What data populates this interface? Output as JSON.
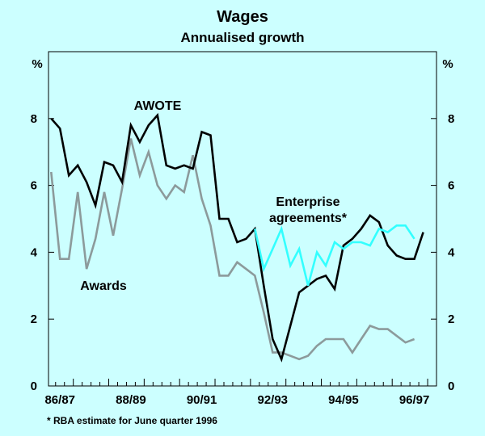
{
  "chart_data": {
    "type": "line",
    "title": "Wages",
    "subtitle": "Annualised growth",
    "y_unit_left": "%",
    "y_unit_right": "%",
    "ylim": [
      0,
      10
    ],
    "yticks": [
      0,
      2,
      4,
      6,
      8
    ],
    "x_tick_labels": [
      "86/87",
      "88/89",
      "90/91",
      "92/93",
      "94/95",
      "96/97"
    ],
    "x_tick_positions": [
      1,
      9,
      17,
      25,
      33,
      41
    ],
    "xlim": [
      -0.3,
      43.5
    ],
    "footnote": "* RBA estimate for June quarter 1996",
    "series": [
      {
        "name": "AWOTE",
        "color": "#000000",
        "x": [
          0,
          1,
          2,
          3,
          4,
          5,
          6,
          7,
          8,
          9,
          10,
          11,
          12,
          13,
          14,
          15,
          16,
          17,
          18,
          19,
          20,
          21,
          22,
          23,
          24,
          25,
          26,
          27,
          28,
          29,
          30,
          31,
          32,
          33,
          34,
          35,
          36,
          37,
          38,
          39,
          40,
          41,
          42
        ],
        "values": [
          8.0,
          7.7,
          6.3,
          6.6,
          6.1,
          5.4,
          6.7,
          6.6,
          6.1,
          7.8,
          7.3,
          7.8,
          8.1,
          6.6,
          6.5,
          6.6,
          6.5,
          7.6,
          7.5,
          5.0,
          5.0,
          4.3,
          4.4,
          4.7,
          3.0,
          1.4,
          0.8,
          1.8,
          2.8,
          3.0,
          3.2,
          3.3,
          2.9,
          4.2,
          4.4,
          4.7,
          5.1,
          4.9,
          4.2,
          3.9,
          3.8,
          3.8,
          4.6
        ]
      },
      {
        "name": "Awards",
        "color": "#8c9a9b",
        "x": [
          0,
          1,
          2,
          3,
          4,
          5,
          6,
          7,
          8,
          9,
          10,
          11,
          12,
          13,
          14,
          15,
          16,
          17,
          18,
          19,
          20,
          21,
          22,
          23,
          24,
          25,
          26,
          27,
          28,
          29,
          30,
          31,
          32,
          33,
          34,
          35,
          36,
          37,
          38,
          39,
          40,
          41
        ],
        "values": [
          6.4,
          3.8,
          3.8,
          5.8,
          3.5,
          4.4,
          5.8,
          4.5,
          5.9,
          7.4,
          6.3,
          7.0,
          6.0,
          5.6,
          6.0,
          5.8,
          6.9,
          5.6,
          4.8,
          3.3,
          3.3,
          3.7,
          3.5,
          3.3,
          2.2,
          1.0,
          1.0,
          0.9,
          0.8,
          0.9,
          1.2,
          1.4,
          1.4,
          1.4,
          1.0,
          1.4,
          1.8,
          1.7,
          1.7,
          1.5,
          1.3,
          1.4
        ]
      },
      {
        "name": "Enterprise agreements*",
        "label_line1": "Enterprise",
        "label_line2": "agreements*",
        "color": "#33ffff",
        "x": [
          23,
          24,
          25,
          26,
          27,
          28,
          29,
          30,
          31,
          32,
          33,
          34,
          35,
          36,
          37,
          38,
          39,
          40,
          41
        ],
        "values": [
          4.7,
          3.5,
          4.1,
          4.7,
          3.6,
          4.1,
          3.0,
          4.0,
          3.6,
          4.3,
          4.1,
          4.3,
          4.3,
          4.2,
          4.7,
          4.6,
          4.8,
          4.8,
          4.4
        ]
      }
    ]
  }
}
